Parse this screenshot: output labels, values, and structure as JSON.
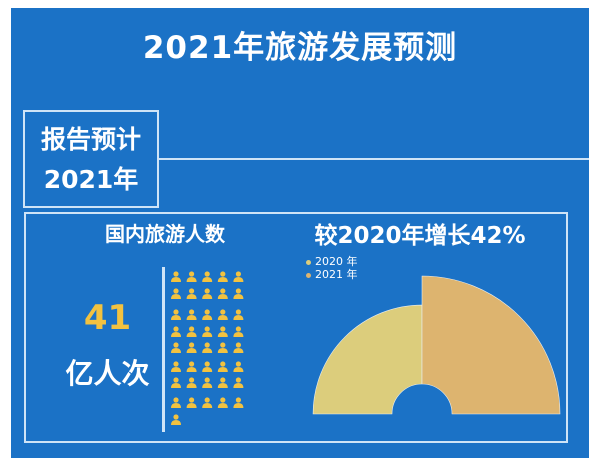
{
  "title": "2021年旅游发展预测",
  "report_box": {
    "line1": "报告预计",
    "line2": "2021年"
  },
  "left_section": {
    "heading": "国内旅游人数",
    "value": "41",
    "unit": "亿人次",
    "person_icon_count": 41,
    "icon": "person-icon"
  },
  "right_section": {
    "heading": "较2020年增长42%"
  },
  "colors": {
    "background": "#1b72c6",
    "accent": "#f2c240",
    "c2020": "#dccd7c",
    "c2021": "#ddb46f",
    "border": "#cfe4f7"
  },
  "chart_data": {
    "type": "pie",
    "subtype": "half-rose (semicircle, two quarter sectors, radius by value)",
    "title": "较2020年增长42%",
    "categories": [
      "2020 年",
      "2021 年"
    ],
    "values": [
      28.9,
      41
    ],
    "unit": "亿人次",
    "legend": [
      "2020 年",
      "2021 年"
    ],
    "legend_position": "top-left",
    "colors": [
      "#dccd7c",
      "#ddb46f"
    ]
  }
}
